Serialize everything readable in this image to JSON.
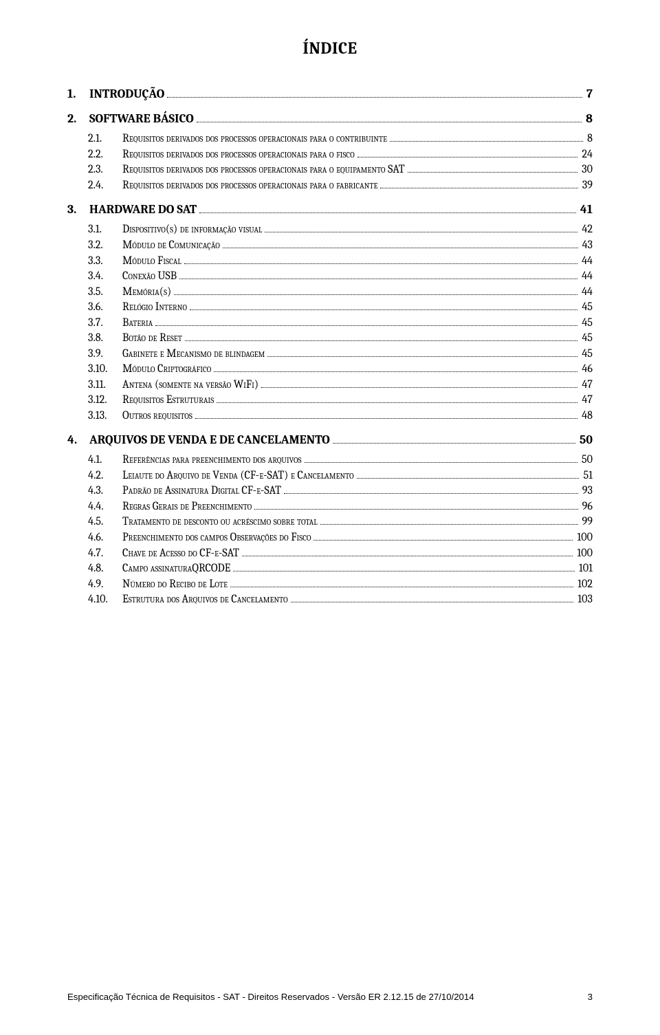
{
  "title": "ÍNDICE",
  "footer": {
    "text": "Especificação Técnica de Requisitos - SAT - Direitos Reservados - Versão ER 2.12.15 de 27/10/2014",
    "page": "3"
  },
  "entries": [
    {
      "level": 1,
      "num": "1.",
      "label": "INTRODUÇÃO",
      "page": "7"
    },
    {
      "level": 1,
      "num": "2.",
      "label": "SOFTWARE BÁSICO",
      "page": "8"
    },
    {
      "level": 2,
      "num": "2.1.",
      "label": "Requisitos derivados dos processos operacionais para o contribuinte",
      "page": "8"
    },
    {
      "level": 2,
      "num": "2.2.",
      "label": "Requisitos derivados dos processos operacionais para o fisco",
      "page": "24"
    },
    {
      "level": 2,
      "num": "2.3.",
      "label": "Requisitos derivados dos processos operacionais para o equipamento SAT",
      "page": "30"
    },
    {
      "level": 2,
      "num": "2.4.",
      "label": "Requisitos derivados dos processos operacionais para o fabricante",
      "page": "39"
    },
    {
      "level": 1,
      "num": "3.",
      "label": "HARDWARE DO SAT",
      "page": "41"
    },
    {
      "level": 2,
      "num": "3.1.",
      "label": "Dispositivo(s) de informação visual",
      "page": "42"
    },
    {
      "level": 2,
      "num": "3.2.",
      "label": "Módulo de Comunicação",
      "page": "43"
    },
    {
      "level": 2,
      "num": "3.3.",
      "label": "Módulo Fiscal",
      "page": "44"
    },
    {
      "level": 2,
      "num": "3.4.",
      "label": "Conexão USB",
      "page": "44"
    },
    {
      "level": 2,
      "num": "3.5.",
      "label": "Memória(s)",
      "page": "44"
    },
    {
      "level": 2,
      "num": "3.6.",
      "label": "Relógio Interno",
      "page": "45"
    },
    {
      "level": 2,
      "num": "3.7.",
      "label": "Bateria",
      "page": "45"
    },
    {
      "level": 2,
      "num": "3.8.",
      "label": "Botão de Reset",
      "page": "45"
    },
    {
      "level": 2,
      "num": "3.9.",
      "label": "Gabinete e Mecanismo de blindagem",
      "page": "45"
    },
    {
      "level": 2,
      "num": "3.10.",
      "label": "Módulo Criptográfico",
      "page": "46"
    },
    {
      "level": 2,
      "num": "3.11.",
      "label": "Antena (somente na versão WiFi)",
      "page": "47"
    },
    {
      "level": 2,
      "num": "3.12.",
      "label": "Requisitos Estruturais",
      "page": "47"
    },
    {
      "level": 2,
      "num": "3.13.",
      "label": "Outros requisitos",
      "page": "48"
    },
    {
      "level": 1,
      "num": "4.",
      "label": "ARQUIVOS DE VENDA E DE CANCELAMENTO",
      "page": "50"
    },
    {
      "level": 2,
      "num": "4.1.",
      "label": "Referências para preenchimento dos arquivos",
      "page": "50"
    },
    {
      "level": 2,
      "num": "4.2.",
      "label": "Leiaute do Arquivo de Venda (CF-e-SAT) e Cancelamento",
      "page": "51"
    },
    {
      "level": 2,
      "num": "4.3.",
      "label": "Padrão de Assinatura Digital CF-e-SAT",
      "page": "93"
    },
    {
      "level": 2,
      "num": "4.4.",
      "label": "Regras Gerais de Preenchimento",
      "page": "96"
    },
    {
      "level": 2,
      "num": "4.5.",
      "label": "Tratamento de desconto ou acréscimo sobre total",
      "page": "99"
    },
    {
      "level": 2,
      "num": "4.6.",
      "label": "Preenchimento dos campos Observações do Fisco",
      "page": "100"
    },
    {
      "level": 2,
      "num": "4.7.",
      "label": "Chave de Acesso do CF-e-SAT",
      "page": "100"
    },
    {
      "level": 2,
      "num": "4.8.",
      "label": "Campo assinaturaQRCODE",
      "page": "101"
    },
    {
      "level": 2,
      "num": "4.9.",
      "label": "Número do Recibo de Lote",
      "page": "102"
    },
    {
      "level": 2,
      "num": "4.10.",
      "label": "Estrutura dos Arquivos de Cancelamento",
      "page": "103"
    }
  ]
}
